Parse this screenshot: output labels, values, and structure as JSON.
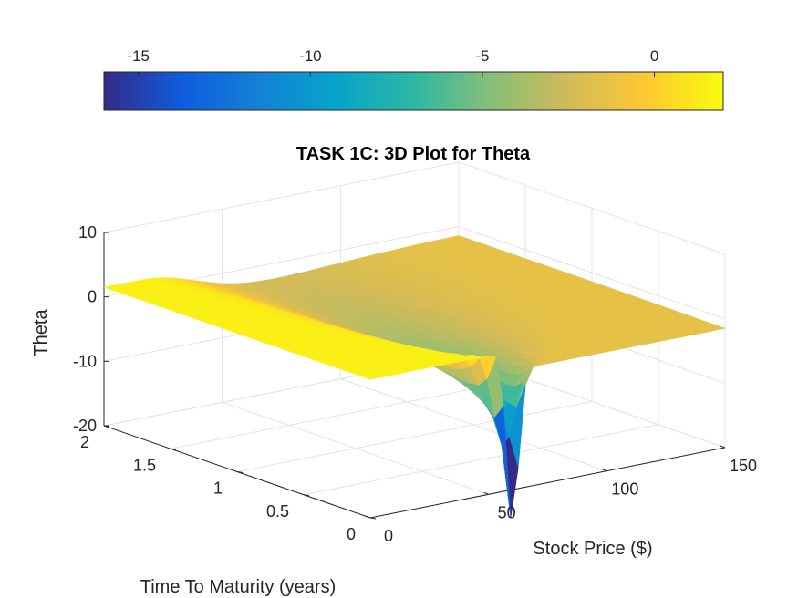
{
  "chart_data": {
    "type": "surface",
    "title": "TASK 1C: 3D Plot for Theta",
    "xlabel": "Stock Price ($)",
    "ylabel": "Time To Maturity (years)",
    "zlabel": "Theta",
    "xlim": [
      0,
      150
    ],
    "ylim": [
      0,
      2
    ],
    "zlim": [
      -20,
      10
    ],
    "x_ticks": [
      "0",
      "50",
      "100",
      "150"
    ],
    "y_ticks": [
      "0",
      "0.5",
      "1",
      "1.5",
      "2"
    ],
    "z_ticks": [
      "-20",
      "-10",
      "0",
      "10"
    ],
    "grid": true,
    "colormap": "parula",
    "colorbar": {
      "location": "top",
      "range": [
        -16,
        2
      ],
      "ticks": [
        "-15",
        "-10",
        "-5",
        "0"
      ]
    },
    "surface_summary": {
      "theta_min": -16,
      "min_location": {
        "stock_price": 60,
        "time_to_maturity": 0.02
      },
      "theta_plateau_low_price": 1.5,
      "theta_plateau_high_price": -2.5
    }
  }
}
